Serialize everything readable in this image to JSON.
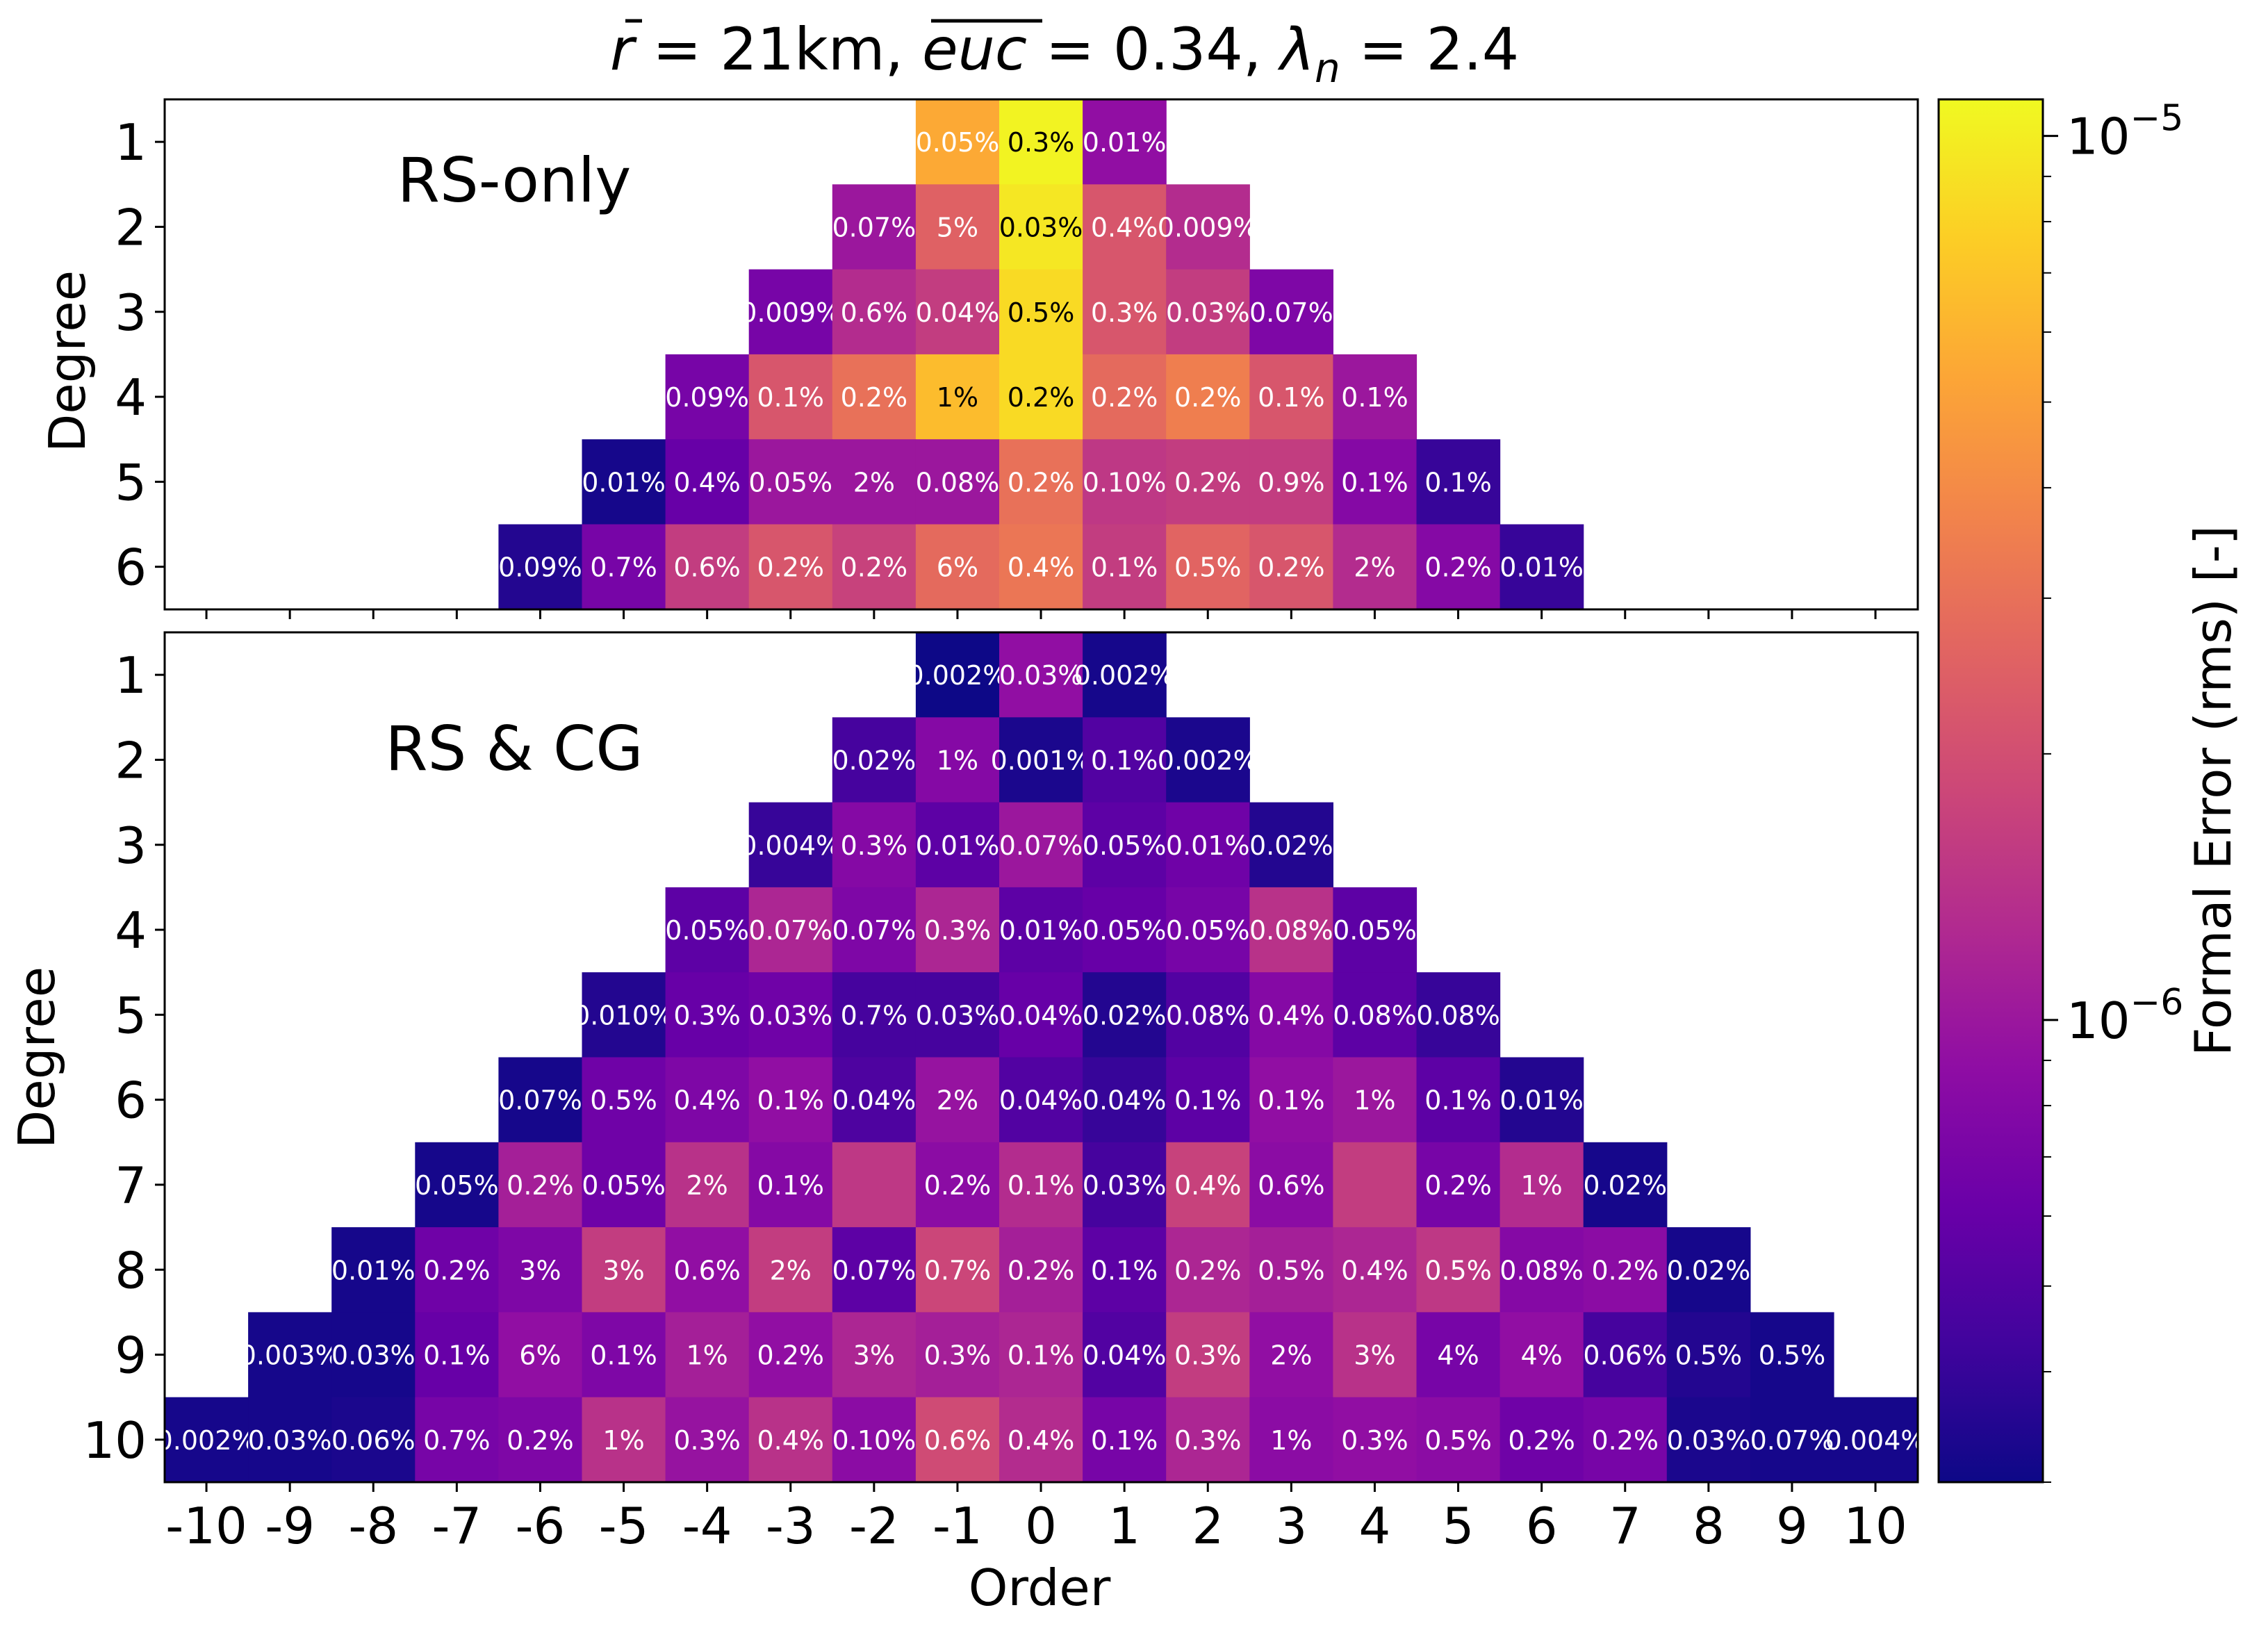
{
  "chart_data": {
    "type": "heatmap",
    "title": "r̄ = 21km, euc = 0.34, λn = 2.4",
    "title_parts": {
      "r_symbol": "r",
      "r_value": " = 21km, ",
      "euc_symbol": "euc",
      "euc_value": " = 0.34, ",
      "lambda_symbol": "λ",
      "lambda_subscript": "n",
      "lambda_value": " = 2.4"
    },
    "xlabel": "Order",
    "x_ticks": [
      "-10",
      "-9",
      "-8",
      "-7",
      "-6",
      "-5",
      "-4",
      "-3",
      "-2",
      "-1",
      "0",
      "1",
      "2",
      "3",
      "4",
      "5",
      "6",
      "7",
      "8",
      "9",
      "10"
    ],
    "colorbar": {
      "label": "Formal Error (rms) [-]",
      "scale": "log",
      "colormap": "plasma",
      "range": [
        3e-07,
        1.1e-05
      ],
      "ticks": [
        {
          "value": 1e-05,
          "base": "10",
          "exp": "−5"
        },
        {
          "value": 1e-06,
          "base": "10",
          "exp": "−6"
        }
      ]
    },
    "panels": [
      {
        "name": "RS-only",
        "label": "RS-only",
        "ylabel": "Degree",
        "degrees": [
          1,
          2,
          3,
          4,
          5,
          6
        ],
        "rows": [
          {
            "degree": 1,
            "values": [
              5.5e-06,
              1.05e-05,
              9e-07
            ],
            "labels": [
              "0.05%",
              "0.3%",
              "0.01%"
            ]
          },
          {
            "degree": 2,
            "values": [
              1e-06,
              2.5e-06,
              9.5e-06,
              2.2e-06,
              1.3e-06
            ],
            "labels": [
              "0.07%",
              "5%",
              "0.03%",
              "0.4%",
              "0.009%"
            ]
          },
          {
            "degree": 3,
            "values": [
              7e-07,
              1.3e-06,
              1.6e-06,
              8.5e-06,
              2.2e-06,
              1.6e-06,
              7.5e-07
            ],
            "labels": [
              "0.009%",
              "0.6%",
              "0.04%",
              "0.5%",
              "0.3%",
              "0.03%",
              "0.07%"
            ]
          },
          {
            "degree": 4,
            "values": [
              7e-07,
              2.2e-06,
              3e-06,
              6.5e-06,
              8.5e-06,
              2.8e-06,
              3.5e-06,
              2.2e-06,
              1e-06
            ],
            "labels": [
              "0.09%",
              "0.1%",
              "0.2%",
              "1%",
              "0.2%",
              "0.2%",
              "0.2%",
              "0.1%",
              "0.1%"
            ]
          },
          {
            "degree": 5,
            "values": [
              3.2e-07,
              6e-07,
              1e-06,
              1e-06,
              1e-06,
              3e-06,
              1.5e-06,
              1.6e-06,
              1.6e-06,
              8e-07,
              4e-07
            ],
            "labels": [
              "0.01%",
              "0.4%",
              "0.05%",
              "2%",
              "0.08%",
              "0.2%",
              "0.10%",
              "0.2%",
              "0.9%",
              "0.1%",
              "0.1%"
            ]
          },
          {
            "degree": 6,
            "values": [
              3.5e-07,
              7e-07,
              1.6e-06,
              2.2e-06,
              1.7e-06,
              2.8e-06,
              3.2e-06,
              1.6e-06,
              2.6e-06,
              2.2e-06,
              1.3e-06,
              8e-07,
              4e-07
            ],
            "labels": [
              "0.09%",
              "0.7%",
              "0.6%",
              "0.2%",
              "0.2%",
              "6%",
              "0.4%",
              "0.1%",
              "0.5%",
              "0.2%",
              "2%",
              "0.2%",
              "0.01%"
            ]
          }
        ]
      },
      {
        "name": "RS & CG",
        "label": "RS & CG",
        "ylabel": "Degree",
        "degrees": [
          1,
          2,
          3,
          4,
          5,
          6,
          7,
          8,
          9,
          10
        ],
        "rows": [
          {
            "degree": 1,
            "values": [
              3e-07,
              9e-07,
              3.2e-07
            ],
            "labels": [
              "0.002%",
              "0.03%",
              "0.002%"
            ]
          },
          {
            "degree": 2,
            "values": [
              4.5e-07,
              8e-07,
              3.3e-07,
              5e-07,
              3.3e-07
            ],
            "labels": [
              "0.02%",
              "1%",
              "0.001%",
              "0.1%",
              "0.002%"
            ]
          },
          {
            "degree": 3,
            "values": [
              4e-07,
              8e-07,
              5.5e-07,
              1e-06,
              5.5e-07,
              6.5e-07,
              3.5e-07
            ],
            "labels": [
              "0.004%",
              "0.3%",
              "0.01%",
              "0.07%",
              "0.05%",
              "0.01%",
              "0.02%"
            ]
          },
          {
            "degree": 4,
            "values": [
              5.5e-07,
              1.2e-06,
              7.5e-07,
              1.2e-06,
              5.5e-07,
              6e-07,
              7e-07,
              1.4e-06,
              5.5e-07
            ],
            "labels": [
              "0.05%",
              "0.07%",
              "0.07%",
              "0.3%",
              "0.01%",
              "0.05%",
              "0.05%",
              "0.08%",
              "0.05%"
            ]
          },
          {
            "degree": 5,
            "values": [
              3.5e-07,
              6e-07,
              6.5e-07,
              4.5e-07,
              4.5e-07,
              6e-07,
              3.5e-07,
              5e-07,
              8e-07,
              5.5e-07,
              4e-07
            ],
            "labels": [
              "0.010%",
              "0.3%",
              "0.03%",
              "0.7%",
              "0.03%",
              "0.04%",
              "0.02%",
              "0.08%",
              "0.4%",
              "0.08%",
              "0.08%"
            ]
          },
          {
            "degree": 6,
            "values": [
              3.2e-07,
              6.5e-07,
              7.5e-07,
              9e-07,
              4.8e-07,
              9.5e-07,
              5e-07,
              4e-07,
              5.5e-07,
              9e-07,
              1e-06,
              5.5e-07,
              3.5e-07
            ],
            "labels": [
              "0.07%",
              "0.5%",
              "0.4%",
              "0.1%",
              "0.04%",
              "2%",
              "0.04%",
              "0.04%",
              "0.1%",
              "0.1%",
              "1%",
              "0.1%",
              "0.01%"
            ]
          },
          {
            "degree": 7,
            "values": [
              3.2e-07,
              1.1e-06,
              6.5e-07,
              1.4e-06,
              8e-07,
              1.5e-06,
              8.5e-07,
              1.3e-06,
              4.5e-07,
              1.7e-06,
              8.5e-07,
              1.6e-06,
              7e-07,
              1.3e-06,
              3.2e-07
            ],
            "labels": [
              "0.05%",
              "0.2%",
              "0.05%",
              "2%",
              "0.1%",
              "",
              "0.2%",
              "0.1%",
              "0.03%",
              "0.4%",
              "0.6%",
              "",
              "0.2%",
              "1%",
              "0.02%"
            ]
          },
          {
            "degree": 8,
            "values": [
              3.2e-07,
              6.5e-07,
              7.5e-07,
              1.6e-06,
              9e-07,
              1.6e-06,
              5.5e-07,
              1.8e-06,
              1.1e-06,
              5.5e-07,
              1.2e-06,
              1.1e-06,
              1.2e-06,
              1.5e-06,
              8e-07,
              8.5e-07,
              3.2e-07
            ],
            "labels": [
              "0.01%",
              "0.2%",
              "3%",
              "3%",
              "0.6%",
              "2%",
              "0.07%",
              "0.7%",
              "0.2%",
              "0.1%",
              "0.2%",
              "0.5%",
              "0.4%",
              "0.5%",
              "0.08%",
              "0.2%",
              "0.02%"
            ]
          },
          {
            "degree": 9,
            "values": [
              3.2e-07,
              3.2e-07,
              6e-07,
              9e-07,
              7.5e-07,
              1.1e-06,
              9e-07,
              1.2e-06,
              1.1e-06,
              1.2e-06,
              5e-07,
              1.6e-06,
              9e-07,
              1.4e-06,
              7e-07,
              9e-07,
              4.5e-07,
              3.5e-07,
              3.2e-07
            ],
            "labels": [
              "0.003%",
              "0.03%",
              "0.1%",
              "6%",
              "0.1%",
              "1%",
              "0.2%",
              "3%",
              "0.3%",
              "0.1%",
              "0.04%",
              "0.3%",
              "2%",
              "3%",
              "4%",
              "4%",
              "0.06%",
              "0.5%",
              "0.5%"
            ]
          },
          {
            "degree": 10,
            "values": [
              3.2e-07,
              3.2e-07,
              3.3e-07,
              7e-07,
              7.5e-07,
              1.4e-06,
              9.5e-07,
              1.4e-06,
              8.5e-07,
              1.9e-06,
              1.3e-06,
              7e-07,
              1.2e-06,
              8.5e-07,
              9e-07,
              8.5e-07,
              6.5e-07,
              7e-07,
              3.3e-07,
              3.2e-07,
              3.2e-07
            ],
            "labels": [
              "0.002%",
              "0.03%",
              "0.06%",
              "0.7%",
              "0.2%",
              "1%",
              "0.3%",
              "0.4%",
              "0.10%",
              "0.6%",
              "0.4%",
              "0.1%",
              "0.3%",
              "1%",
              "0.3%",
              "0.5%",
              "0.2%",
              "0.2%",
              "0.03%",
              "0.07%",
              "0.004%"
            ]
          }
        ]
      }
    ]
  }
}
